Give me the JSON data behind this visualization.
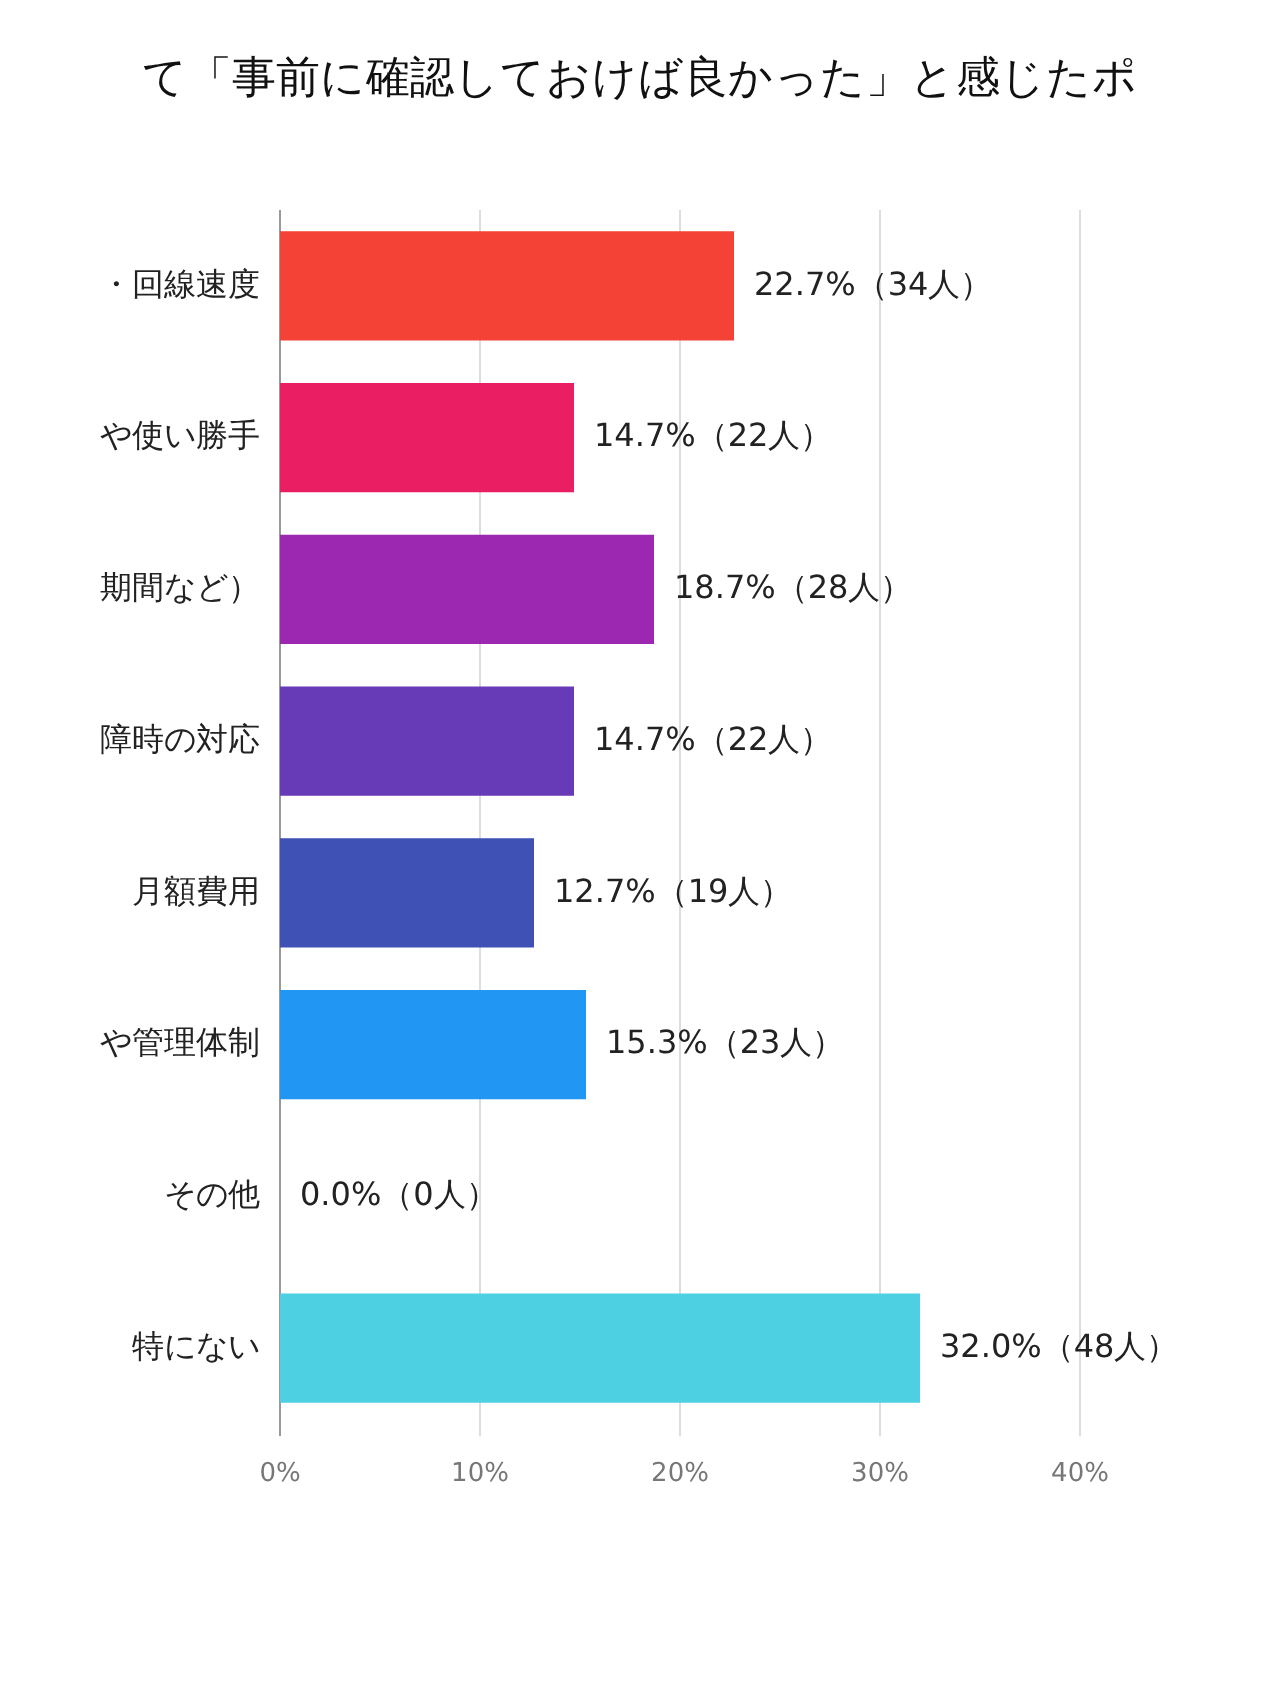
{
  "chart_data": {
    "type": "bar",
    "orientation": "horizontal",
    "title": "て「事前に確認しておけば良かった」と感じたポ",
    "categories": [
      "・回線速度",
      "や使い勝手",
      "期間など）",
      "障時の対応",
      "月額費用",
      "や管理体制",
      "その他",
      "特にない"
    ],
    "values": [
      22.7,
      14.7,
      18.7,
      14.7,
      12.7,
      15.3,
      0.0,
      32.0
    ],
    "colors": [
      "#f44336",
      "#e91e63",
      "#9c27b0",
      "#673ab7",
      "#3f51b5",
      "#2196f3",
      "#03a9f4",
      "#4dd0e1"
    ],
    "value_labels": [
      "22.7%（34人）",
      "14.7%（22人）",
      "18.7%（28人）",
      "14.7%（22人）",
      "12.7%（19人）",
      "15.3%（23人）",
      "0.0%（0人）",
      "32.0%（48人）"
    ],
    "xlim": [
      0,
      40
    ],
    "xticks": [
      {
        "value": 0,
        "label": "0%"
      },
      {
        "value": 10,
        "label": "10%"
      },
      {
        "value": 20,
        "label": "20%"
      },
      {
        "value": 30,
        "label": "30%"
      },
      {
        "value": 40,
        "label": "40%"
      }
    ],
    "grid": "x"
  }
}
